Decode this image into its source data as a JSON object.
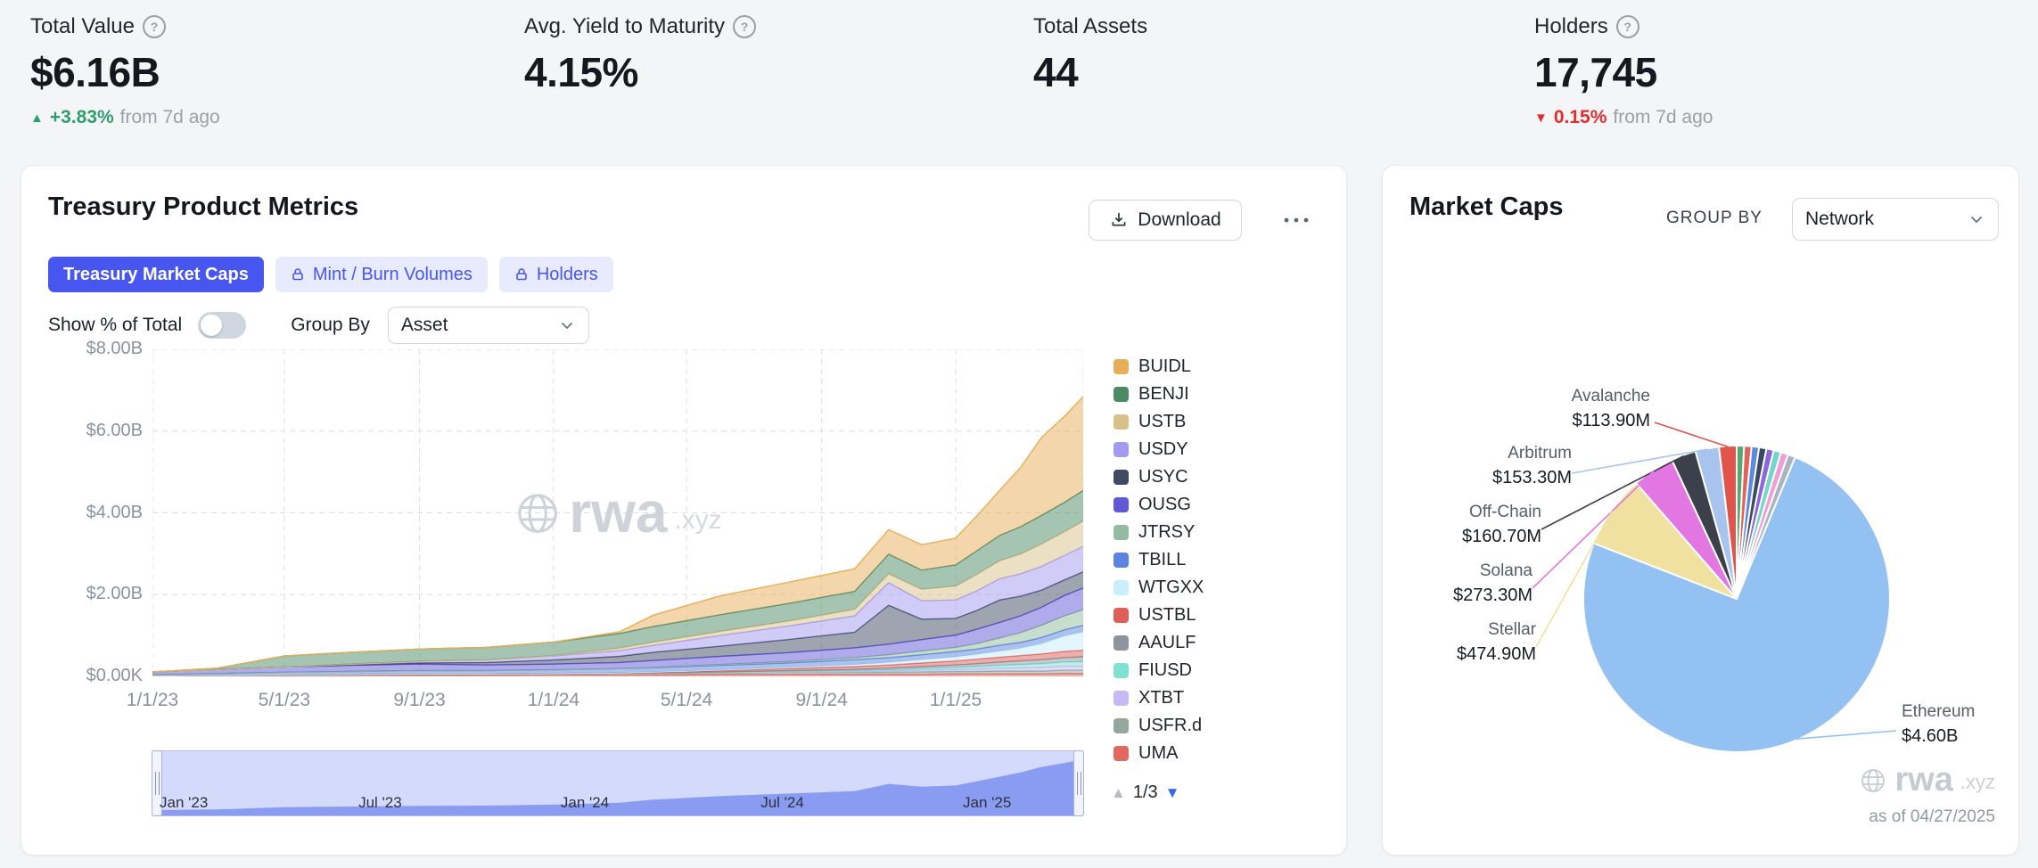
{
  "stats": [
    {
      "label": "Total Value",
      "value": "$6.16B",
      "delta": "+3.83%",
      "delta_suffix": "from 7d ago",
      "delta_dir": "up"
    },
    {
      "label": "Avg. Yield to Maturity",
      "value": "4.15%"
    },
    {
      "label": "Total Assets",
      "value": "44"
    },
    {
      "label": "Holders",
      "value": "17,745",
      "delta": "0.15%",
      "delta_suffix": "from 7d ago",
      "delta_dir": "down"
    }
  ],
  "colors": {
    "accent_blue": "#4856f0",
    "delta_green": "#2f9e6e",
    "delta_red": "#e02d2d"
  },
  "treasury_card": {
    "title": "Treasury Product Metrics",
    "download_label": "Download",
    "tabs": [
      {
        "label": "Treasury Market Caps",
        "active": true,
        "locked": false
      },
      {
        "label": "Mint / Burn Volumes",
        "active": false,
        "locked": true
      },
      {
        "label": "Holders",
        "active": false,
        "locked": true
      }
    ],
    "show_pct_label": "Show % of Total",
    "show_pct_on": false,
    "group_by_label": "Group By",
    "group_by_value": "Asset",
    "legend_pagination": "1/3",
    "watermark": {
      "name": "rwa",
      "tld": ".xyz"
    }
  },
  "market_card": {
    "title": "Market Caps",
    "group_by_label": "GROUP BY",
    "group_by_value": "Network",
    "as_of": "as of 04/27/2025",
    "watermark": {
      "name": "rwa",
      "tld": ".xyz"
    }
  },
  "chart_data": [
    {
      "type": "area",
      "stacked": true,
      "title": "Treasury Market Caps",
      "unit": "USD billions",
      "ylim": [
        0,
        8
      ],
      "grid": "dashed",
      "legend_position": "right",
      "y_ticks": [
        "$8.00B",
        "$6.00B",
        "$4.00B",
        "$2.00B",
        "$0.00K"
      ],
      "x_ticks": [
        "1/1/23",
        "5/1/23",
        "9/1/23",
        "1/1/24",
        "5/1/24",
        "9/1/24",
        "1/1/25"
      ],
      "x_tick_dates": [
        "2023-01-01",
        "2023-05-01",
        "2023-09-01",
        "2024-01-01",
        "2024-05-01",
        "2024-09-01",
        "2025-01-01"
      ],
      "brush_ticks": [
        "Jan '23",
        "Jul '23",
        "Jan '24",
        "Jul '24",
        "Jan '25"
      ],
      "brush_tick_dates": [
        "2023-01-01",
        "2023-07-01",
        "2024-01-01",
        "2024-07-01",
        "2025-01-01"
      ],
      "x_dates": [
        "2023-01-01",
        "2023-03-01",
        "2023-05-01",
        "2023-07-01",
        "2023-09-01",
        "2023-11-01",
        "2024-01-01",
        "2024-03-01",
        "2024-04-01",
        "2024-06-01",
        "2024-08-01",
        "2024-10-01",
        "2024-11-01",
        "2024-12-01",
        "2025-01-01",
        "2025-01-20",
        "2025-02-10",
        "2025-03-01",
        "2025-03-20",
        "2025-04-10",
        "2025-04-27"
      ],
      "series": [
        {
          "name": "BUIDL",
          "color": "#e7ae58",
          "values": [
            0,
            0,
            0,
            0,
            0,
            0,
            0,
            0.04,
            0.28,
            0.46,
            0.52,
            0.55,
            0.6,
            0.62,
            0.65,
            0.85,
            1.1,
            1.45,
            1.9,
            2.1,
            2.3
          ]
        },
        {
          "name": "BENJI",
          "color": "#4b8a65",
          "values": [
            0,
            0.03,
            0.27,
            0.29,
            0.3,
            0.31,
            0.33,
            0.36,
            0.38,
            0.41,
            0.43,
            0.44,
            0.48,
            0.47,
            0.52,
            0.58,
            0.62,
            0.67,
            0.7,
            0.72,
            0.75
          ]
        },
        {
          "name": "USTB",
          "color": "#d8c08a",
          "values": [
            0,
            0,
            0,
            0,
            0,
            0,
            0.01,
            0.06,
            0.08,
            0.1,
            0.12,
            0.16,
            0.22,
            0.28,
            0.34,
            0.4,
            0.44,
            0.48,
            0.55,
            0.58,
            0.62
          ]
        },
        {
          "name": "USDY",
          "color": "#a49af0",
          "values": [
            0,
            0,
            0,
            0.02,
            0.04,
            0.06,
            0.1,
            0.14,
            0.17,
            0.26,
            0.33,
            0.4,
            0.55,
            0.45,
            0.45,
            0.48,
            0.52,
            0.55,
            0.58,
            0.6,
            0.62
          ]
        },
        {
          "name": "USYC",
          "color": "#3f4a63",
          "values": [
            0,
            0,
            0,
            0.01,
            0.03,
            0.06,
            0.1,
            0.15,
            0.2,
            0.25,
            0.32,
            0.38,
            0.95,
            0.5,
            0.41,
            0.46,
            0.55,
            0.48,
            0.42,
            0.38,
            0.4
          ]
        },
        {
          "name": "OUSG",
          "color": "#6258d6",
          "values": [
            0.07,
            0.1,
            0.13,
            0.15,
            0.16,
            0.14,
            0.14,
            0.15,
            0.17,
            0.2,
            0.22,
            0.24,
            0.26,
            0.28,
            0.3,
            0.35,
            0.38,
            0.41,
            0.44,
            0.5,
            0.53
          ]
        },
        {
          "name": "JTRSY",
          "color": "#93bb9f",
          "values": [
            0,
            0,
            0,
            0,
            0,
            0,
            0,
            0,
            0.01,
            0.02,
            0.03,
            0.05,
            0.07,
            0.09,
            0.1,
            0.13,
            0.18,
            0.24,
            0.3,
            0.34,
            0.38
          ]
        },
        {
          "name": "TBILL",
          "color": "#5b84e0",
          "values": [
            0.02,
            0.04,
            0.06,
            0.07,
            0.08,
            0.08,
            0.09,
            0.1,
            0.1,
            0.11,
            0.11,
            0.12,
            0.12,
            0.12,
            0.13,
            0.13,
            0.14,
            0.14,
            0.15,
            0.15,
            0.16
          ]
        },
        {
          "name": "WTGXX",
          "color": "#c9eefb",
          "values": [
            0,
            0,
            0,
            0,
            0,
            0,
            0,
            0,
            0.01,
            0.02,
            0.03,
            0.05,
            0.06,
            0.08,
            0.1,
            0.12,
            0.15,
            0.18,
            0.25,
            0.38,
            0.45
          ]
        },
        {
          "name": "USTBL",
          "color": "#dd5f58",
          "values": [
            0,
            0,
            0,
            0,
            0,
            0,
            0,
            0.01,
            0.02,
            0.03,
            0.05,
            0.07,
            0.08,
            0.09,
            0.1,
            0.11,
            0.12,
            0.13,
            0.14,
            0.15,
            0.16
          ]
        },
        {
          "name": "AAULF",
          "color": "#8e949e",
          "values": [
            0,
            0,
            0,
            0,
            0,
            0,
            0,
            0,
            0,
            0.01,
            0.02,
            0.03,
            0.04,
            0.05,
            0.06,
            0.07,
            0.08,
            0.09,
            0.1,
            0.11,
            0.12
          ]
        },
        {
          "name": "FIUSD",
          "color": "#7fe0d4",
          "values": [
            0,
            0,
            0,
            0,
            0,
            0,
            0,
            0,
            0,
            0,
            0.01,
            0.02,
            0.03,
            0.04,
            0.05,
            0.06,
            0.07,
            0.08,
            0.09,
            0.1,
            0.11
          ]
        },
        {
          "name": "XTBT",
          "color": "#c6b9f4",
          "values": [
            0,
            0,
            0,
            0,
            0,
            0,
            0,
            0,
            0,
            0.01,
            0.01,
            0.02,
            0.03,
            0.04,
            0.05,
            0.06,
            0.07,
            0.08,
            0.09,
            0.1,
            0.1
          ]
        },
        {
          "name": "USFR.d",
          "color": "#95a69e",
          "values": [
            0.01,
            0.01,
            0.02,
            0.02,
            0.03,
            0.03,
            0.03,
            0.04,
            0.04,
            0.04,
            0.05,
            0.05,
            0.05,
            0.06,
            0.06,
            0.06,
            0.07,
            0.07,
            0.07,
            0.08,
            0.08
          ]
        },
        {
          "name": "UMA",
          "color": "#e2695f",
          "values": [
            0.01,
            0.02,
            0.02,
            0.03,
            0.03,
            0.03,
            0.04,
            0.04,
            0.04,
            0.05,
            0.05,
            0.05,
            0.05,
            0.05,
            0.06,
            0.06,
            0.06,
            0.06,
            0.06,
            0.07,
            0.07
          ]
        }
      ]
    },
    {
      "type": "pie",
      "title": "Market Caps by Network",
      "unit": "USD millions",
      "slices": [
        {
          "name": "",
          "value_musd": 48,
          "color": "#57a773"
        },
        {
          "name": "",
          "value_musd": 48,
          "color": "#e2625c"
        },
        {
          "name": "",
          "value_musd": 48,
          "color": "#5c8ae2"
        },
        {
          "name": "",
          "value_musd": 48,
          "color": "#3b4863"
        },
        {
          "name": "",
          "value_musd": 48,
          "color": "#8b66e0"
        },
        {
          "name": "",
          "value_musd": 48,
          "color": "#6fd6c9"
        },
        {
          "name": "",
          "value_musd": 48,
          "color": "#ef9fd8"
        },
        {
          "name": "",
          "value_musd": 48,
          "color": "#aab3c0"
        },
        {
          "name": "Ethereum",
          "value_musd": 4600,
          "color": "#93c1f1"
        },
        {
          "name": "Stellar",
          "value_musd": 474.9,
          "color": "#f0e1a0"
        },
        {
          "name": "Solana",
          "value_musd": 273.3,
          "color": "#e277e2"
        },
        {
          "name": "Off-Chain",
          "value_musd": 160.7,
          "color": "#3c404b"
        },
        {
          "name": "Arbitrum",
          "value_musd": 153.3,
          "color": "#a8c4ee"
        },
        {
          "name": "Avalanche",
          "value_musd": 113.9,
          "color": "#e0544c"
        }
      ],
      "callouts": [
        {
          "name": "Avalanche",
          "value_label": "$113.90M"
        },
        {
          "name": "Arbitrum",
          "value_label": "$153.30M"
        },
        {
          "name": "Off-Chain",
          "value_label": "$160.70M"
        },
        {
          "name": "Solana",
          "value_label": "$273.30M"
        },
        {
          "name": "Stellar",
          "value_label": "$474.90M"
        },
        {
          "name": "Ethereum",
          "value_label": "$4.60B"
        }
      ]
    }
  ]
}
